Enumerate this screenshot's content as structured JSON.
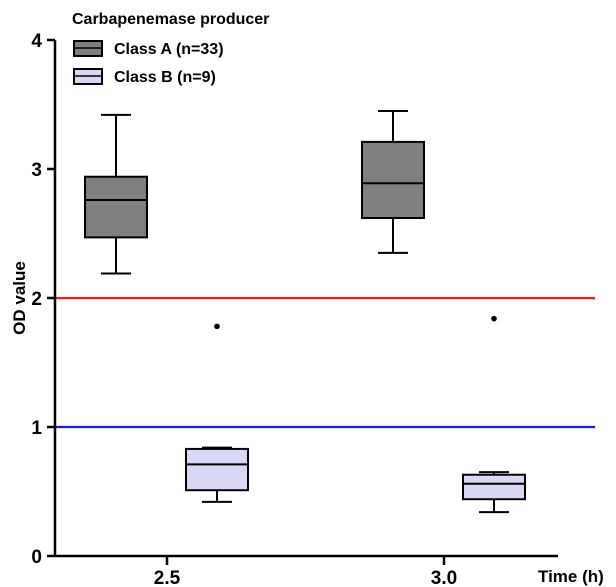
{
  "chart_data": {
    "type": "box",
    "legend_title": "Carbapenemase producer",
    "legend_position": "top-left",
    "xlabel": "Time (h)",
    "ylabel": "OD value",
    "ylim": [
      0,
      4
    ],
    "y_ticks": [
      0,
      1,
      2,
      3,
      4
    ],
    "categories": [
      "2.5",
      "3.0"
    ],
    "grid": false,
    "series": [
      {
        "name": "Class A (n=33)",
        "color": "#7f7f7f",
        "boxes": [
          {
            "category": "2.5",
            "min": 2.19,
            "q1": 2.47,
            "median": 2.76,
            "q3": 2.94,
            "max": 3.42,
            "outliers": []
          },
          {
            "category": "3.0",
            "min": 2.35,
            "q1": 2.62,
            "median": 2.89,
            "q3": 3.21,
            "max": 3.45,
            "outliers": []
          }
        ]
      },
      {
        "name": "Class B (n=9)",
        "color": "#d9d9f5",
        "boxes": [
          {
            "category": "2.5",
            "min": 0.42,
            "q1": 0.51,
            "median": 0.71,
            "q3": 0.83,
            "max": 0.84,
            "outliers": [
              1.78
            ]
          },
          {
            "category": "3.0",
            "min": 0.34,
            "q1": 0.44,
            "median": 0.56,
            "q3": 0.63,
            "max": 0.65,
            "outliers": [
              1.84
            ]
          }
        ]
      }
    ],
    "reference_lines": [
      {
        "value": 2,
        "color": "#ee1c1c"
      },
      {
        "value": 1,
        "color": "#1c1cdd"
      }
    ]
  }
}
